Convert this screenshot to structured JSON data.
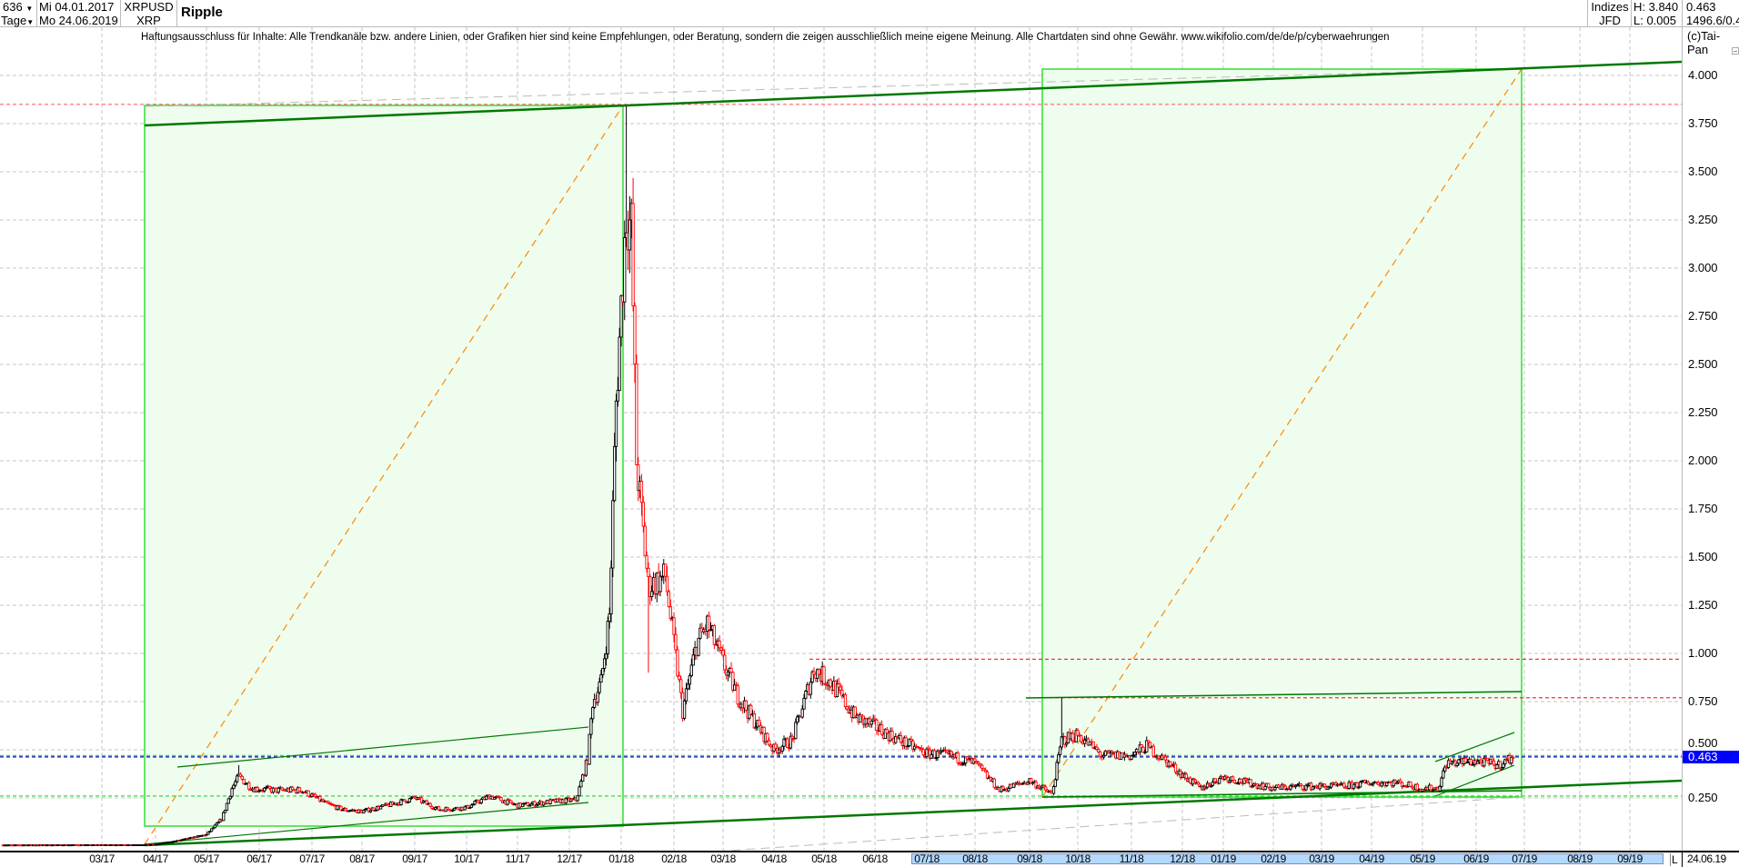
{
  "header": {
    "bars_count": "636",
    "period": "Tage",
    "date_from": "Mi 04.01.2017",
    "date_to": "Mo 24.06.2019",
    "symbol": "XRPUSD",
    "symbol_short": "XRP",
    "title": "Ripple",
    "exchange_group": "Indizes",
    "exchange": "JFD",
    "high": "H: 3.840",
    "low": "L: 0.005",
    "last": "0.463",
    "info": "1496.6/0.4"
  },
  "disclaimer": "Haftungsausschluss für Inhalte: Alle Trendkanäle bzw. andere Linien, oder Grafiken hier sind keine Empfehlungen, oder Beratung, sondern die zeigen ausschließlich meine eigene Meinung. Alle Chartdaten sind ohne Gewähr.  www.wikifolio.com/de/de/p/cyberwaehrungen",
  "copyright": "(c)Tai-Pan",
  "footer": {
    "scale_mode": "L",
    "current_date": "24.06.19"
  },
  "colors": {
    "up": "#000000",
    "down": "#ff0000",
    "box_fill": "#eefdee",
    "box_border": "#33dd33",
    "trend": "#007700",
    "fib": "#ff8800",
    "last_marker": "#0000ff",
    "axis_highlight": "#b3d9ff"
  },
  "chart_data": {
    "type": "candlestick",
    "title": "Ripple",
    "ylim": [
      0,
      4.05
    ],
    "grid": true,
    "y_ticks": [
      "4.000",
      "3.750",
      "3.500",
      "3.250",
      "3.000",
      "2.750",
      "2.500",
      "2.250",
      "2.000",
      "1.750",
      "1.500",
      "1.250",
      "1.000",
      "0.750",
      "0.500",
      "0.250"
    ],
    "x_ticks": [
      "03/17",
      "04/17",
      "05/17",
      "06/17",
      "07/17",
      "08/17",
      "09/17",
      "10/17",
      "11/17",
      "12/17",
      "01/18",
      "02/18",
      "03/18",
      "04/18",
      "05/18",
      "06/18",
      "07/18",
      "08/18",
      "09/18",
      "10/18",
      "11/18",
      "12/18",
      "01/19",
      "02/19",
      "03/19",
      "04/19",
      "05/19",
      "06/19",
      "07/19",
      "08/19",
      "09/19"
    ],
    "last_price": 0.463,
    "horizontal_levels": [
      3.85,
      0.97,
      0.77,
      0.47,
      0.463,
      0.26
    ],
    "close_path": [
      {
        "d": "2017-01-04",
        "c": 0.006
      },
      {
        "d": "2017-03-20",
        "c": 0.007
      },
      {
        "d": "2017-04-01",
        "c": 0.009
      },
      {
        "d": "2017-04-15",
        "c": 0.03
      },
      {
        "d": "2017-05-01",
        "c": 0.06
      },
      {
        "d": "2017-05-10",
        "c": 0.14
      },
      {
        "d": "2017-05-16",
        "c": 0.3
      },
      {
        "d": "2017-05-20",
        "c": 0.36,
        "h": 0.42
      },
      {
        "d": "2017-05-28",
        "c": 0.3
      },
      {
        "d": "2017-06-10",
        "c": 0.29
      },
      {
        "d": "2017-06-25",
        "c": 0.29
      },
      {
        "d": "2017-07-10",
        "c": 0.22
      },
      {
        "d": "2017-07-20",
        "c": 0.19
      },
      {
        "d": "2017-08-01",
        "c": 0.18
      },
      {
        "d": "2017-08-20",
        "c": 0.22
      },
      {
        "d": "2017-09-01",
        "c": 0.25
      },
      {
        "d": "2017-09-15",
        "c": 0.19
      },
      {
        "d": "2017-10-01",
        "c": 0.2
      },
      {
        "d": "2017-10-15",
        "c": 0.26
      },
      {
        "d": "2017-11-01",
        "c": 0.21
      },
      {
        "d": "2017-11-20",
        "c": 0.23
      },
      {
        "d": "2017-12-05",
        "c": 0.24
      },
      {
        "d": "2017-12-12",
        "c": 0.45
      },
      {
        "d": "2017-12-15",
        "c": 0.75
      },
      {
        "d": "2017-12-20",
        "c": 0.85
      },
      {
        "d": "2017-12-25",
        "c": 1.2
      },
      {
        "d": "2017-12-29",
        "c": 2.3
      },
      {
        "d": "2018-01-04",
        "c": 3.3,
        "h": 3.84
      },
      {
        "d": "2018-01-07",
        "c": 3.2
      },
      {
        "d": "2018-01-10",
        "c": 2.0
      },
      {
        "d": "2018-01-17",
        "c": 1.35,
        "l": 0.9
      },
      {
        "d": "2018-01-27",
        "c": 1.4
      },
      {
        "d": "2018-02-06",
        "c": 0.7
      },
      {
        "d": "2018-02-14",
        "c": 1.05
      },
      {
        "d": "2018-02-20",
        "c": 1.15
      },
      {
        "d": "2018-03-01",
        "c": 0.95
      },
      {
        "d": "2018-03-10",
        "c": 0.78
      },
      {
        "d": "2018-03-20",
        "c": 0.65
      },
      {
        "d": "2018-04-01",
        "c": 0.5
      },
      {
        "d": "2018-04-12",
        "c": 0.55
      },
      {
        "d": "2018-04-25",
        "c": 0.92
      },
      {
        "d": "2018-05-05",
        "c": 0.85
      },
      {
        "d": "2018-05-20",
        "c": 0.67
      },
      {
        "d": "2018-06-01",
        "c": 0.62
      },
      {
        "d": "2018-06-15",
        "c": 0.55
      },
      {
        "d": "2018-07-01",
        "c": 0.48
      },
      {
        "d": "2018-07-15",
        "c": 0.47
      },
      {
        "d": "2018-08-01",
        "c": 0.43
      },
      {
        "d": "2018-08-15",
        "c": 0.29
      },
      {
        "d": "2018-09-01",
        "c": 0.34
      },
      {
        "d": "2018-09-15",
        "c": 0.27
      },
      {
        "d": "2018-09-21",
        "c": 0.55,
        "h": 0.77
      },
      {
        "d": "2018-10-01",
        "c": 0.58
      },
      {
        "d": "2018-10-15",
        "c": 0.47
      },
      {
        "d": "2018-11-01",
        "c": 0.47
      },
      {
        "d": "2018-11-10",
        "c": 0.52
      },
      {
        "d": "2018-11-20",
        "c": 0.45
      },
      {
        "d": "2018-12-01",
        "c": 0.37
      },
      {
        "d": "2018-12-15",
        "c": 0.3
      },
      {
        "d": "2019-01-01",
        "c": 0.36
      },
      {
        "d": "2019-01-15",
        "c": 0.33
      },
      {
        "d": "2019-02-01",
        "c": 0.3
      },
      {
        "d": "2019-02-15",
        "c": 0.31
      },
      {
        "d": "2019-03-01",
        "c": 0.31
      },
      {
        "d": "2019-03-15",
        "c": 0.31
      },
      {
        "d": "2019-04-01",
        "c": 0.33
      },
      {
        "d": "2019-04-15",
        "c": 0.33
      },
      {
        "d": "2019-05-01",
        "c": 0.3
      },
      {
        "d": "2019-05-10",
        "c": 0.3
      },
      {
        "d": "2019-05-15",
        "c": 0.43
      },
      {
        "d": "2019-06-01",
        "c": 0.44
      },
      {
        "d": "2019-06-15",
        "c": 0.42
      },
      {
        "d": "2019-06-24",
        "c": 0.463
      }
    ]
  }
}
